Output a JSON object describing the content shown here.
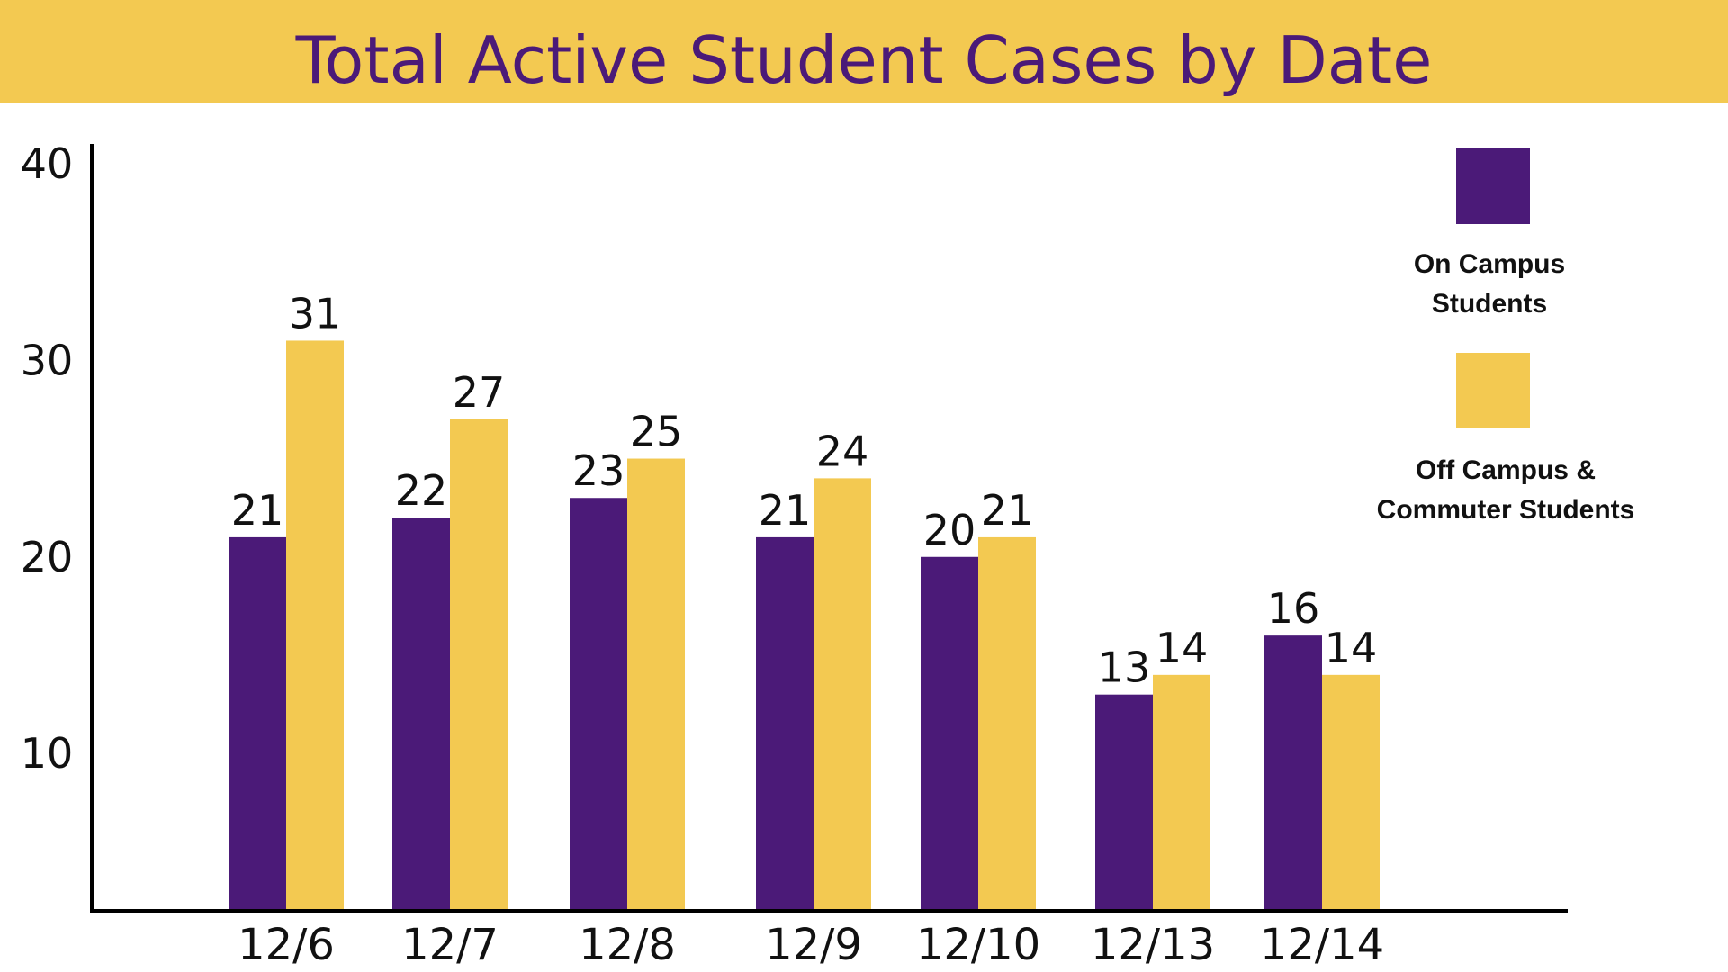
{
  "chart_data": {
    "type": "bar",
    "title": "Total Active Student Cases by Date",
    "xlabel": "",
    "ylabel": "",
    "categories": [
      "12/6",
      "12/7",
      "12/8",
      "12/9",
      "12/10",
      "12/13",
      "12/14"
    ],
    "series": [
      {
        "name": "On Campus Students",
        "color": "#4b1a78",
        "values": [
          21,
          22,
          23,
          21,
          20,
          13,
          16
        ]
      },
      {
        "name": "Off Campus & Commuter Students",
        "color": "#f3c951",
        "values": [
          31,
          27,
          25,
          24,
          21,
          14,
          14
        ]
      }
    ],
    "ylim": [
      2,
      41
    ],
    "yticks": [
      10,
      20,
      30,
      40
    ],
    "grid": false,
    "legend_position": "right"
  },
  "legend": {
    "on_campus_line1": "On Campus",
    "on_campus_line2": "Students",
    "off_campus_line1": "Off Campus &",
    "off_campus_line2": "Commuter Students"
  }
}
